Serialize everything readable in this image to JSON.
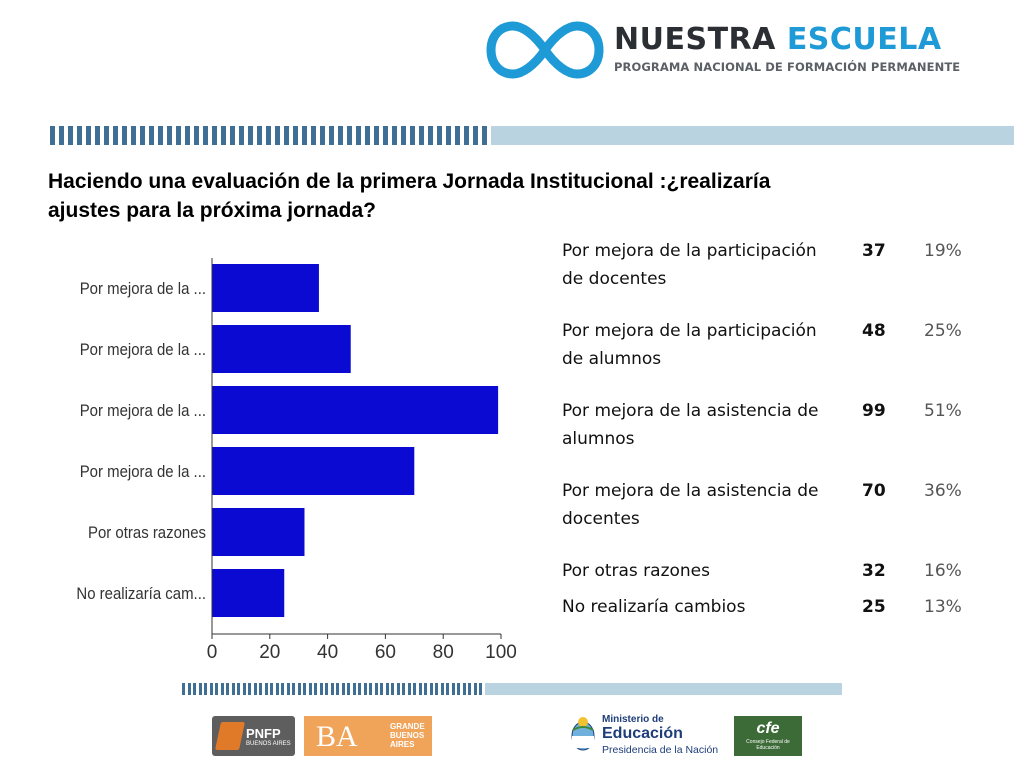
{
  "header": {
    "brand_part1": "NUESTRA",
    "brand_part2": "ESCUELA",
    "tagline": "PROGRAMA NACIONAL DE FORMACIÓN PERMANENTE"
  },
  "title": "Haciendo una evaluación de la primera Jornada Institucional :¿realizaría ajustes para la próxima jornada?",
  "chart_data": {
    "type": "bar",
    "orientation": "horizontal",
    "categories": [
      "Por mejora de la ...",
      "Por mejora de la ...",
      "Por mejora de la ...",
      "Por mejora de la ...",
      "Por otras razones",
      "No realizaría cam..."
    ],
    "values": [
      37,
      48,
      99,
      70,
      32,
      25
    ],
    "xlim": [
      0,
      100
    ],
    "xticks": [
      0,
      20,
      40,
      60,
      80,
      100
    ],
    "bar_color": "#0a0ad2",
    "grid": false
  },
  "table": {
    "rows": [
      {
        "label": "Por mejora de la participación de docentes",
        "count": "37",
        "percent": "19%"
      },
      {
        "label": "Por mejora de la participación de alumnos",
        "count": "48",
        "percent": "25%"
      },
      {
        "label": "Por mejora de la asistencia de alumnos",
        "count": "99",
        "percent": "51%"
      },
      {
        "label": "Por mejora de la asistencia de docentes",
        "count": "70",
        "percent": "36%"
      },
      {
        "label": "Por otras razones",
        "count": "32",
        "percent": "16%"
      },
      {
        "label": "No realizaría cambios",
        "count": "25",
        "percent": "13%"
      }
    ]
  },
  "footer": {
    "pnfp_label": "PNFP",
    "pnfp_sub": "BUENOS AIRES",
    "ba_big": "BA",
    "ba_small": "GRANDE BUENOS AIRES",
    "ministry_line1": "Ministerio de",
    "ministry_line2": "Educación",
    "ministry_line3": "Presidencia de la Nación",
    "cfe_big": "cfe",
    "cfe_small": "Consejo Federal de Educación"
  },
  "colors": {
    "brand_dark": "#2b2e33",
    "brand_blue": "#1e9ad6",
    "stripe_dark": "#3f6f94",
    "stripe_light": "#b9d3e0"
  }
}
